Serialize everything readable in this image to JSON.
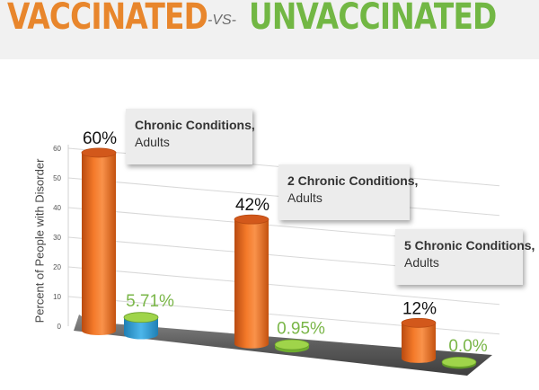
{
  "header": {
    "left": "VACCINATED",
    "vs": "-VS-",
    "right": "UNVACCINATED"
  },
  "colors": {
    "vaccinated": "#ee6a1d",
    "unvaccinated": "#8cc63f",
    "unvaccinated_first": "#3ca6dc",
    "title_orange": "#e8862c",
    "title_green": "#72b744"
  },
  "chart_data": {
    "type": "bar",
    "categories": [
      "Chronic Conditions, Adults",
      "2 Chronic Conditions, Adults",
      "5 Chronic Conditions, Adults"
    ],
    "series": [
      {
        "values": [
          60,
          42,
          12
        ],
        "labels": [
          "60%",
          "42%",
          "12%"
        ]
      },
      {
        "values": [
          5.71,
          0.95,
          0.0
        ],
        "labels": [
          "5.71%",
          "0.95%",
          "0.0%"
        ]
      }
    ],
    "callouts": [
      {
        "title": "Chronic Conditions,",
        "sub": "Adults"
      },
      {
        "title": "2 Chronic Conditions,",
        "sub": "Adults"
      },
      {
        "title": "5 Chronic Conditions,",
        "sub": "Adults"
      }
    ],
    "ylabel": "Percent of People with Disorder",
    "yticks": [
      "0",
      "10",
      "20",
      "30",
      "40",
      "50",
      "60"
    ],
    "ylim": [
      0,
      60
    ],
    "grid": true,
    "style": "3d-cylinder"
  }
}
